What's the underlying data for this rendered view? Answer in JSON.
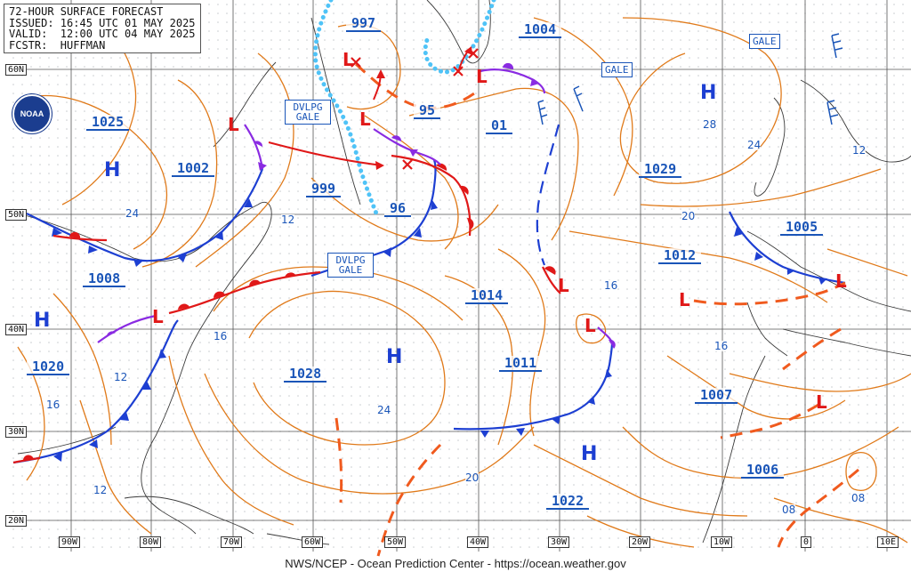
{
  "header": {
    "line1": "72-HOUR SURFACE FORECAST",
    "line2": "ISSUED: 16:45 UTC 01 MAY 2025",
    "line3": "VALID:  12:00 UTC 04 MAY 2025",
    "line4": "FCSTR:  HUFFMAN"
  },
  "footer": {
    "credit": "NWS/NCEP - Ocean Prediction Center - https://ocean.weather.gov"
  },
  "logo": {
    "text": "NOAA",
    "icon": "noaa-logo-icon"
  },
  "axes": {
    "lat": [
      "60N",
      "50N",
      "40N",
      "30N",
      "20N"
    ],
    "lon": [
      "90W",
      "80W",
      "70W",
      "60W",
      "50W",
      "40W",
      "30W",
      "20W",
      "10W",
      "0",
      "10E"
    ]
  },
  "pressure_labels": [
    "997",
    "1004",
    "1025",
    "1002",
    "95",
    "01",
    "1029",
    "999",
    "96",
    "1005",
    "1008",
    "1012",
    "1014",
    "1020",
    "1028",
    "1011",
    "1007",
    "1006",
    "1022"
  ],
  "isobar_labels": [
    "28",
    "24",
    "12",
    "24",
    "20",
    "12",
    "16",
    "16",
    "12",
    "16",
    "24",
    "16",
    "20",
    "12",
    "08",
    "08"
  ],
  "highs": [
    "H",
    "H",
    "H",
    "H",
    "H"
  ],
  "lows": [
    "L",
    "L",
    "L",
    "L",
    "L",
    "L",
    "L",
    "L",
    "L",
    "L"
  ],
  "warnings": [
    "DVLPG GALE",
    "DVLPG GALE",
    "GALE",
    "GALE"
  ],
  "colors": {
    "isobar": "#e07a1a",
    "cold_front": "#1d3fd2",
    "warm_front": "#e01818",
    "occluded": "#8a2be2",
    "trough": "#f05a1e",
    "ice": "#4fc3f7",
    "label": "#1a55b8"
  }
}
